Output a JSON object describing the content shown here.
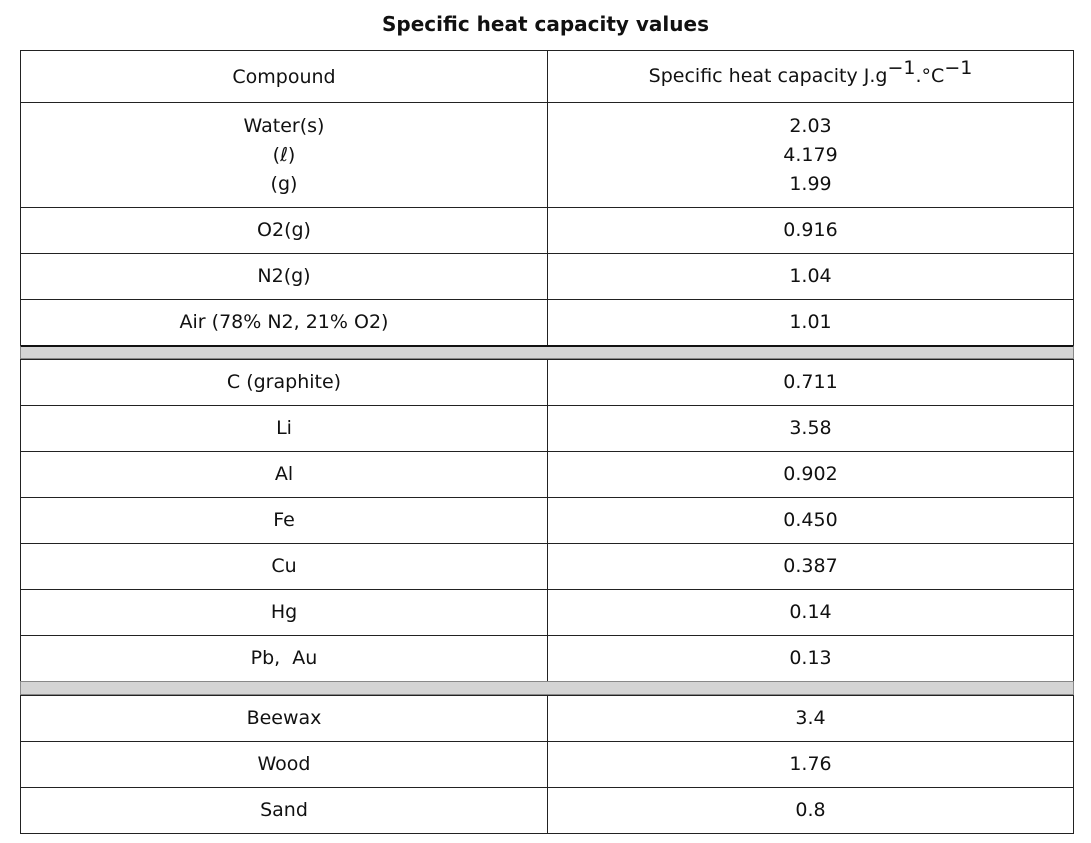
{
  "title": "Specific heat capacity values",
  "header": {
    "compound": "Compound",
    "capacity": {
      "text": "Specific heat capacity J.g",
      "exp1": "−1",
      "unit": ".°C",
      "exp2": "−1"
    }
  },
  "sections": [
    {
      "rows": [
        {
          "compound": [
            "Water(s)",
            "(ℓ)",
            "(g)"
          ],
          "value": [
            "2.03",
            "4.179",
            "1.99"
          ]
        },
        {
          "compound": [
            "O2(g)"
          ],
          "value": [
            "0.916"
          ]
        },
        {
          "compound": [
            "N2(g)"
          ],
          "value": [
            "1.04"
          ]
        },
        {
          "compound": [
            "Air (78% N2, 21% O2)"
          ],
          "value": [
            "1.01"
          ]
        }
      ]
    },
    {
      "rows": [
        {
          "compound": [
            "C (graphite)"
          ],
          "value": [
            "0.711"
          ]
        },
        {
          "compound": [
            "Li"
          ],
          "value": [
            "3.58"
          ]
        },
        {
          "compound": [
            "Al"
          ],
          "value": [
            "0.902"
          ]
        },
        {
          "compound": [
            "Fe"
          ],
          "value": [
            "0.450"
          ]
        },
        {
          "compound": [
            "Cu"
          ],
          "value": [
            "0.387"
          ]
        },
        {
          "compound": [
            "Hg"
          ],
          "value": [
            "0.14"
          ]
        },
        {
          "compound": [
            "Pb,  Au"
          ],
          "value": [
            "0.13"
          ]
        }
      ]
    },
    {
      "rows": [
        {
          "compound": [
            "Beewax"
          ],
          "value": [
            "3.4"
          ]
        },
        {
          "compound": [
            "Wood"
          ],
          "value": [
            "1.76"
          ]
        },
        {
          "compound": [
            "Sand"
          ],
          "value": [
            "0.8"
          ]
        }
      ]
    }
  ]
}
